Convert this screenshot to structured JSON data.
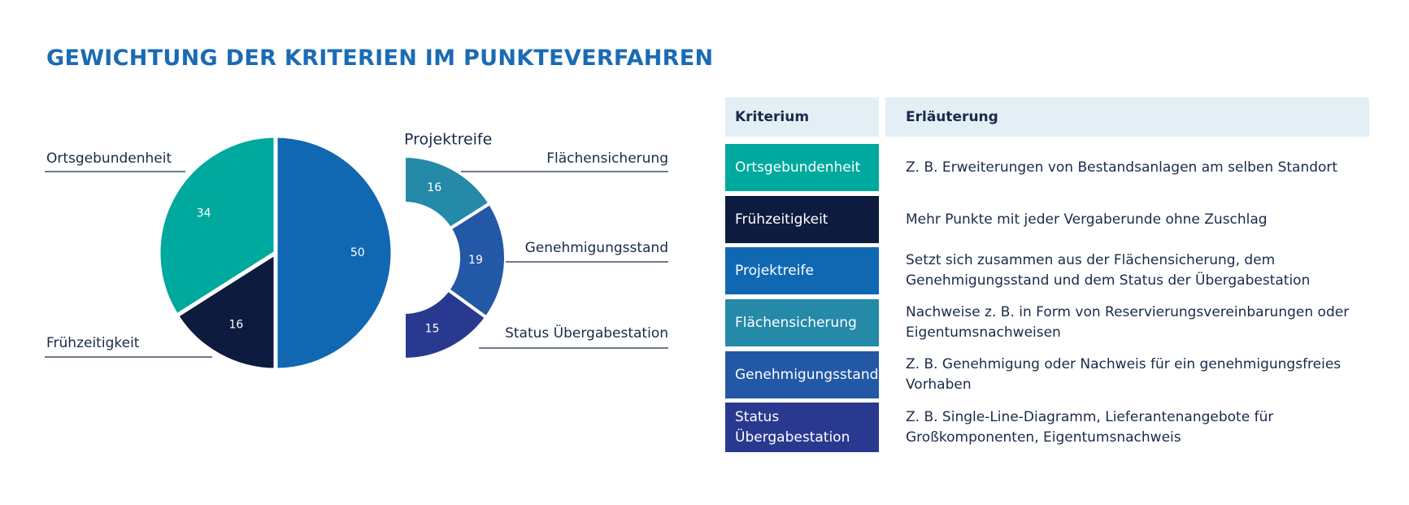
{
  "title": "GEWICHTUNG DER KRITERIEN IM PUNKTEVERFAHREN",
  "chart_data": [
    {
      "type": "pie",
      "categories": [
        "Ortsgebundenheit",
        "Frühzeitigkeit",
        "Projektreife"
      ],
      "values": [
        34,
        16,
        50
      ],
      "colors": [
        "#00a99d",
        "#0d1b3e",
        "#1068b3"
      ]
    },
    {
      "type": "half-donut",
      "categories": [
        "Flächensicherung",
        "Genehmigungsstand",
        "Status Übergabestation"
      ],
      "values": [
        16,
        19,
        15
      ],
      "colors": [
        "#2589a8",
        "#2358a6",
        "#2a3990"
      ]
    }
  ],
  "table": {
    "header": [
      "Kriterium",
      "Erläuterung"
    ],
    "rows": [
      [
        "Ortsgebundenheit",
        "Z. B. Erweiterungen von Bestandsanlagen am selben Standort"
      ],
      [
        "Frühzeitigkeit",
        "Mehr Punkte mit jeder Vergaberunde ohne Zuschlag"
      ],
      [
        "Projektreife",
        "Setzt sich zusammen aus der Flächensicherung, dem Genehmigungsstand und dem Status der Übergabestation"
      ],
      [
        "Flächensicherung",
        "Nachweise z. B. in Form von Reservierungsvereinbarungen oder Eigentumsnachweisen"
      ],
      [
        "Genehmigungsstand",
        "Z. B. Genehmigung oder Nachweis für ein genehmigungsfreies Vorhaben"
      ],
      [
        "Status Übergabestation",
        "Z. B. Single-Line-Diagramm, Lieferantenangebote für Großkomponenten, Eigentumsnachweis"
      ]
    ],
    "row_colors": [
      "#00a99d",
      "#0d1b3e",
      "#1068b3",
      "#2589a8",
      "#2358a6",
      "#2a3990"
    ]
  }
}
